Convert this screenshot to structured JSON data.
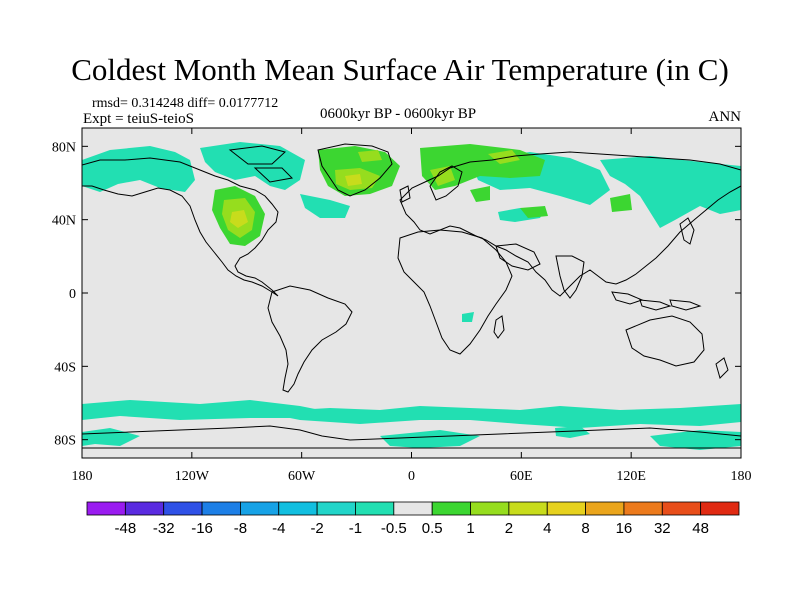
{
  "title": "Coldest Month Mean Surface Air Temperature (in C)",
  "stats": "rmsd= 0.314248 diff= 0.0177712",
  "experiment": "Expt = teiuS-teioS",
  "period": "0600kyr BP - 0600kyr BP",
  "season": "ANN",
  "lat_labels": [
    "80N",
    "40N",
    "0",
    "40S",
    "80S"
  ],
  "lat_values": [
    80,
    40,
    0,
    -40,
    -80
  ],
  "lon_labels": [
    "180",
    "120W",
    "60W",
    "0",
    "60E",
    "120E",
    "180"
  ],
  "lon_values": [
    -180,
    -120,
    -60,
    0,
    60,
    120,
    180
  ],
  "extent": {
    "lon": [
      -180,
      180
    ],
    "lat": [
      -90,
      90
    ]
  },
  "colorbar": {
    "levels": [
      "-48",
      "-32",
      "-16",
      "-8",
      "-4",
      "-2",
      "-1",
      "-0.5",
      "0.5",
      "1",
      "2",
      "4",
      "8",
      "16",
      "32",
      "48"
    ],
    "colors": [
      "#9a1cf0",
      "#5a2be0",
      "#2f51e6",
      "#1d7fe6",
      "#17a2e6",
      "#12bfe0",
      "#22d5c9",
      "#22dfb2",
      "#e6e6e6",
      "#3cd631",
      "#96dd1e",
      "#c8dc1c",
      "#e6d11e",
      "#eaa51c",
      "#ec7a1c",
      "#e84e1a",
      "#e02a12"
    ]
  },
  "colors": {
    "background": "#e6e6e6",
    "coastline": "#000000",
    "anomaly_negative": "#22dfb2",
    "anomaly_positive_small": "#3cd631",
    "anomaly_positive_medium": "#96dd1e",
    "anomaly_positive_large": "#c8dc1c"
  }
}
